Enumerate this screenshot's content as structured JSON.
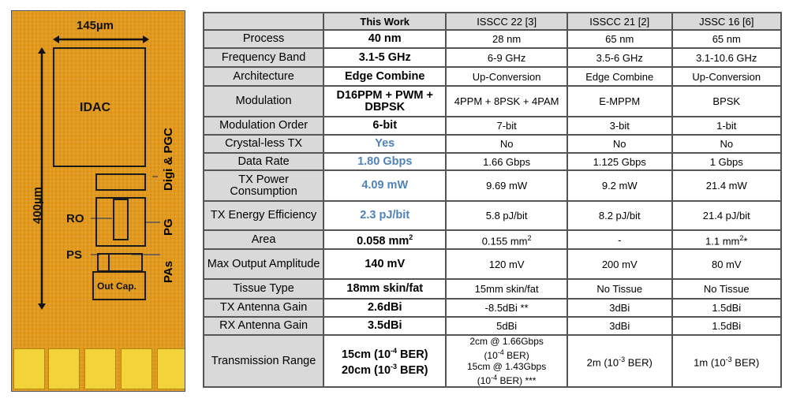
{
  "chip": {
    "width_label": "145µm",
    "height_label": "400µm",
    "blocks": {
      "idac": "IDAC",
      "digi": "Digi & PGC",
      "ro": "RO",
      "pg": "PG",
      "ps": "PS",
      "pas": "PAs",
      "outcap": "Out Cap."
    },
    "color": "#e39a1c"
  },
  "table": {
    "headers": [
      "",
      "This Work",
      "ISSCC 22 [3]",
      "ISSCC 21 [2]",
      "JSSC 16 [6]"
    ],
    "highlight_color": "#4f82b8",
    "rows": [
      {
        "label": "Process",
        "cells": [
          [
            {
              "t": "40 nm"
            }
          ],
          [
            {
              "t": "28 nm"
            }
          ],
          [
            {
              "t": "65 nm"
            }
          ],
          [
            {
              "t": "65 nm"
            }
          ]
        ]
      },
      {
        "label": "Frequency Band",
        "cells": [
          [
            {
              "t": "3.1-5 GHz"
            }
          ],
          [
            {
              "t": "6-9 GHz"
            }
          ],
          [
            {
              "t": "3.5-6 GHz"
            }
          ],
          [
            {
              "t": "3.1-10.6 GHz"
            }
          ]
        ]
      },
      {
        "label": "Architecture",
        "cells": [
          [
            {
              "t": "Edge Combine"
            }
          ],
          [
            {
              "t": "Up-Conversion"
            }
          ],
          [
            {
              "t": "Edge Combine"
            }
          ],
          [
            {
              "t": "Up-Conversion"
            }
          ]
        ]
      },
      {
        "label": "Modulation",
        "cells": [
          [
            {
              "t": "D16PPM + PWM +"
            },
            {
              "br": 1
            },
            {
              "t": "DBPSK"
            }
          ],
          [
            {
              "t": "4PPM + 8PSK + 4PAM"
            }
          ],
          [
            {
              "t": "E-MPPM"
            }
          ],
          [
            {
              "t": "BPSK"
            }
          ]
        ]
      },
      {
        "label": "Modulation Order",
        "cells": [
          [
            {
              "t": "6-bit"
            }
          ],
          [
            {
              "t": "7-bit"
            }
          ],
          [
            {
              "t": "3-bit"
            }
          ],
          [
            {
              "t": "1-bit"
            }
          ]
        ]
      },
      {
        "label": "Crystal-less TX",
        "highlight": true,
        "cells": [
          [
            {
              "t": "Yes"
            }
          ],
          [
            {
              "t": "No"
            }
          ],
          [
            {
              "t": "No"
            }
          ],
          [
            {
              "t": "No"
            }
          ]
        ]
      },
      {
        "label": "Data Rate",
        "highlight": true,
        "cells": [
          [
            {
              "t": "1.80 Gbps"
            }
          ],
          [
            {
              "t": "1.66 Gbps"
            }
          ],
          [
            {
              "t": "1.125 Gbps"
            }
          ],
          [
            {
              "t": "1 Gbps"
            }
          ]
        ]
      },
      {
        "label": "TX Power Consumption",
        "highlight": true,
        "cells": [
          [
            {
              "t": "4.09 mW"
            }
          ],
          [
            {
              "t": "9.69 mW"
            }
          ],
          [
            {
              "t": "9.2 mW"
            }
          ],
          [
            {
              "t": "21.4 mW"
            }
          ]
        ]
      },
      {
        "label": "TX Energy Efficiency",
        "highlight": true,
        "cells": [
          [
            {
              "t": "2.3 pJ/bit"
            }
          ],
          [
            {
              "t": "5.8 pJ/bit"
            }
          ],
          [
            {
              "t": "8.2 pJ/bit"
            }
          ],
          [
            {
              "t": "21.4 pJ/bit"
            }
          ]
        ]
      },
      {
        "label": "Area",
        "cells": [
          [
            {
              "t": "0.058 mm"
            },
            {
              "sup": "2"
            }
          ],
          [
            {
              "t": "0.155 mm"
            },
            {
              "sup": "2"
            }
          ],
          [
            {
              "t": "-"
            }
          ],
          [
            {
              "t": "1.1 mm"
            },
            {
              "sup": "2"
            },
            {
              "t": "*"
            }
          ]
        ]
      },
      {
        "label": "Max Output Amplitude",
        "cells": [
          [
            {
              "t": "140 mV"
            }
          ],
          [
            {
              "t": "120 mV"
            }
          ],
          [
            {
              "t": "200 mV"
            }
          ],
          [
            {
              "t": "80 mV"
            }
          ]
        ]
      },
      {
        "label": "Tissue Type",
        "cells": [
          [
            {
              "t": "18mm skin/fat"
            }
          ],
          [
            {
              "t": "15mm skin/fat"
            }
          ],
          [
            {
              "t": "No Tissue"
            }
          ],
          [
            {
              "t": "No Tissue"
            }
          ]
        ]
      },
      {
        "label": "TX Antenna Gain",
        "cells": [
          [
            {
              "t": "2.6dBi"
            }
          ],
          [
            {
              "t": "-8.5dBi **"
            }
          ],
          [
            {
              "t": "3dBi"
            }
          ],
          [
            {
              "t": "1.5dBi"
            }
          ]
        ]
      },
      {
        "label": "RX Antenna Gain",
        "cells": [
          [
            {
              "t": "3.5dBi"
            }
          ],
          [
            {
              "t": "5dBi"
            }
          ],
          [
            {
              "t": "3dBi"
            }
          ],
          [
            {
              "t": "1.5dBi"
            }
          ]
        ]
      },
      {
        "label": "Transmission Range",
        "cells": [
          [
            {
              "t": "15cm (10"
            },
            {
              "sup": "-4"
            },
            {
              "t": " BER)"
            },
            {
              "br": 1
            },
            {
              "t": "20cm (10"
            },
            {
              "sup": "-3"
            },
            {
              "t": " BER)"
            }
          ],
          [
            {
              "t": "2cm @ 1.66Gbps"
            },
            {
              "br": 1
            },
            {
              "t": "(10"
            },
            {
              "sup": "-4"
            },
            {
              "t": " BER)"
            },
            {
              "br": 1
            },
            {
              "t": "15cm @ 1.43Gbps"
            },
            {
              "br": 1
            },
            {
              "t": "(10"
            },
            {
              "sup": "-4"
            },
            {
              "t": " BER) ***"
            }
          ],
          [
            {
              "t": "2m (10"
            },
            {
              "sup": "-3"
            },
            {
              "t": " BER)"
            }
          ],
          [
            {
              "t": "1m (10"
            },
            {
              "sup": "-3"
            },
            {
              "t": " BER)"
            }
          ]
        ]
      }
    ]
  }
}
